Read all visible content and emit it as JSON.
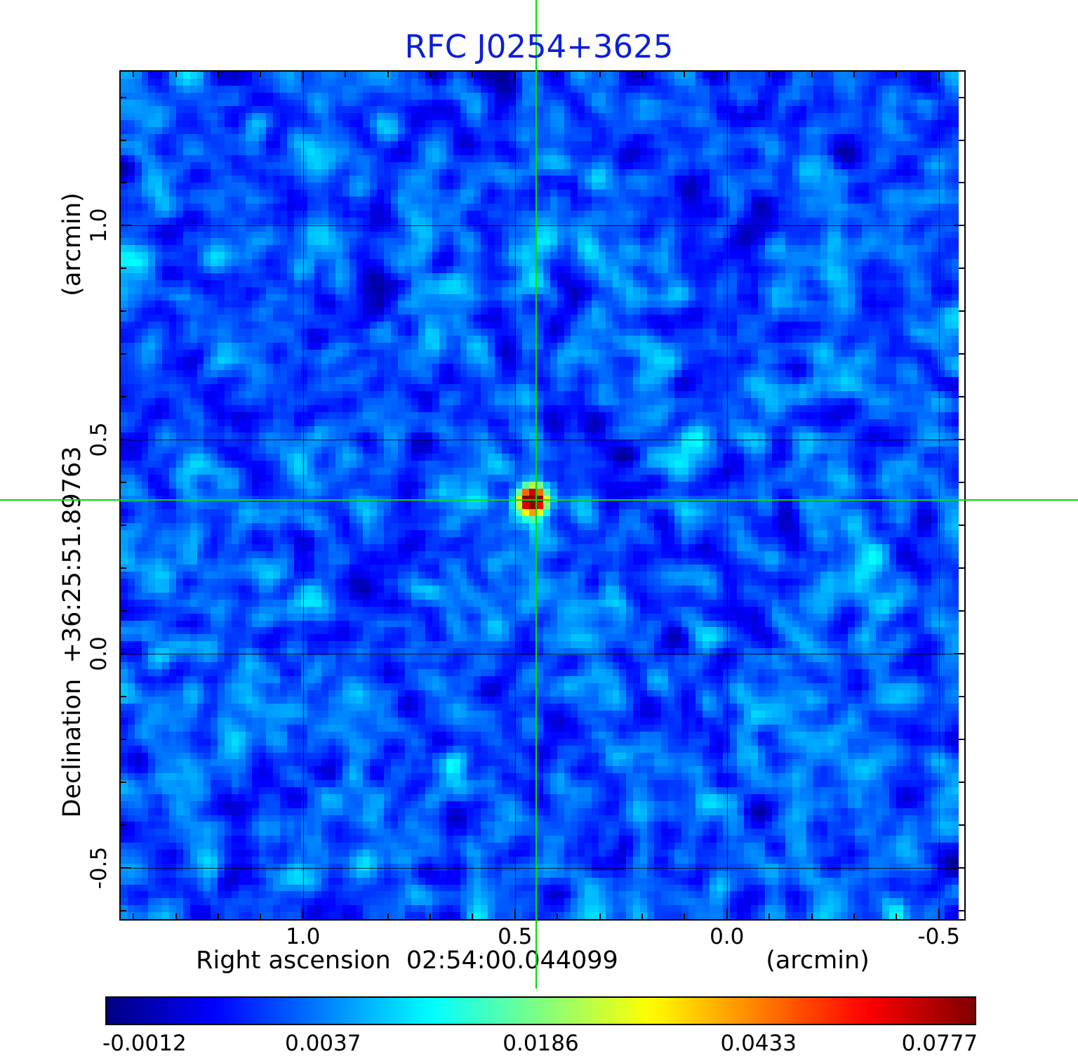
{
  "title": "RFC J0254+3625",
  "plot": {
    "y_unit_label": "(arcmin)",
    "y_axis_label": "Declination  +36:25:51.89763",
    "x_axis_label": "Right ascension  02:54:00.044099",
    "x_unit_label": "(arcmin)"
  },
  "colors": {
    "title": "#0c1fd9",
    "crosshair": "#00dd00",
    "grid": "#000000",
    "background": "#ffffff"
  },
  "chart_data": {
    "type": "heatmap",
    "title": "RFC J0254+3625",
    "xlabel": "Right ascension 02:54:00.044099 (arcmin)",
    "ylabel": "Declination +36:25:51.89763 (arcmin)",
    "colormap": "jet",
    "x_range_arcmin": [
      1.43,
      -0.56
    ],
    "y_range_arcmin": [
      -0.62,
      1.36
    ],
    "x_tick_values": [
      1.0,
      0.5,
      0.0,
      -0.5
    ],
    "x_tick_labels": [
      "1.0",
      "0.5",
      "0.0",
      "-0.5"
    ],
    "y_tick_values": [
      1.0,
      0.5,
      0.0,
      -0.5
    ],
    "y_tick_labels": [
      "1.0",
      "0.5",
      "0.0",
      "-0.5"
    ],
    "minor_tick_step_arcmin": 0.1,
    "grid": true,
    "source": {
      "x_arcmin": 0.45,
      "y_arcmin": 0.36,
      "peak_value": 0.0777
    },
    "crosshair": {
      "x_arcmin": 0.45,
      "y_arcmin": 0.36
    },
    "background_level": 0.0,
    "value_range": [
      -0.0012,
      0.0777
    ],
    "colorbar": {
      "tick_labels": [
        "-0.0012",
        "0.0037",
        "0.0186",
        "0.0433",
        "0.0777"
      ],
      "tick_values": [
        -0.0012,
        0.0037,
        0.0186,
        0.0433,
        0.0777
      ],
      "tick_positions": [
        0.045,
        0.25,
        0.5,
        0.75,
        0.958
      ],
      "min_value": -0.0012,
      "max_value": 0.0777,
      "scale": "power",
      "orientation": "horizontal"
    }
  }
}
